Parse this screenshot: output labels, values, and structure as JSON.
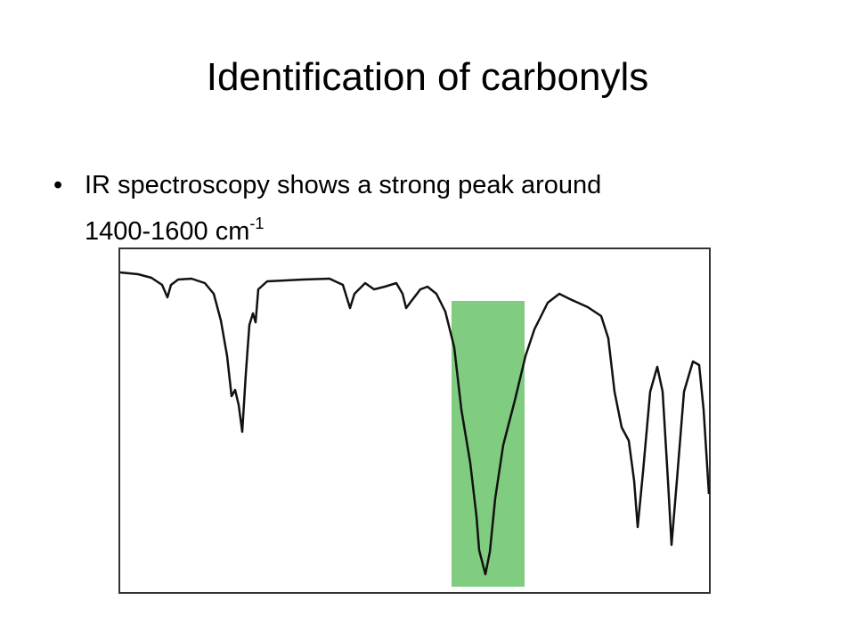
{
  "title": "Identification of carbonyls",
  "bullets": [
    {
      "lines": [
        "IR spectroscopy shows a strong peak around",
        "1400-1600 cm"
      ],
      "superscript": "-1"
    }
  ]
}
